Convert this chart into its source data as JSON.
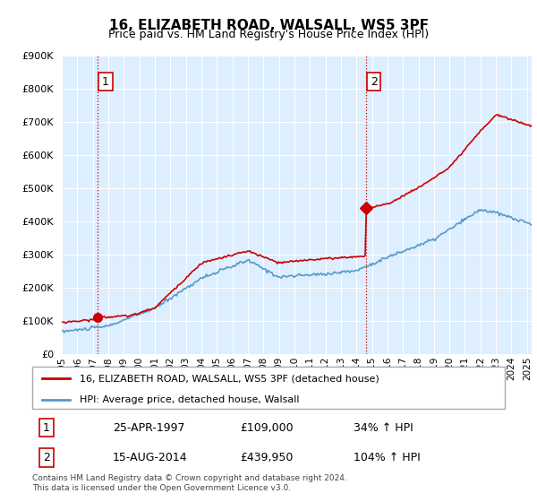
{
  "title": "16, ELIZABETH ROAD, WALSALL, WS5 3PF",
  "subtitle": "Price paid vs. HM Land Registry's House Price Index (HPI)",
  "ylim": [
    0,
    900000
  ],
  "xlim_start": 1995.0,
  "xlim_end": 2025.3,
  "sale1_x": 1997.32,
  "sale1_y": 109000,
  "sale2_x": 2014.62,
  "sale2_y": 439950,
  "sale1_label": "1",
  "sale2_label": "2",
  "legend_line1": "16, ELIZABETH ROAD, WALSALL, WS5 3PF (detached house)",
  "legend_line2": "HPI: Average price, detached house, Walsall",
  "table_row1": [
    "1",
    "25-APR-1997",
    "£109,000",
    "34% ↑ HPI"
  ],
  "table_row2": [
    "2",
    "15-AUG-2014",
    "£439,950",
    "104% ↑ HPI"
  ],
  "footer": "Contains HM Land Registry data © Crown copyright and database right 2024.\nThis data is licensed under the Open Government Licence v3.0.",
  "color_red": "#cc0000",
  "color_blue": "#5599cc",
  "chart_bg": "#ddeeff",
  "hpi_color": "#5599cc",
  "price_color": "#cc0000"
}
